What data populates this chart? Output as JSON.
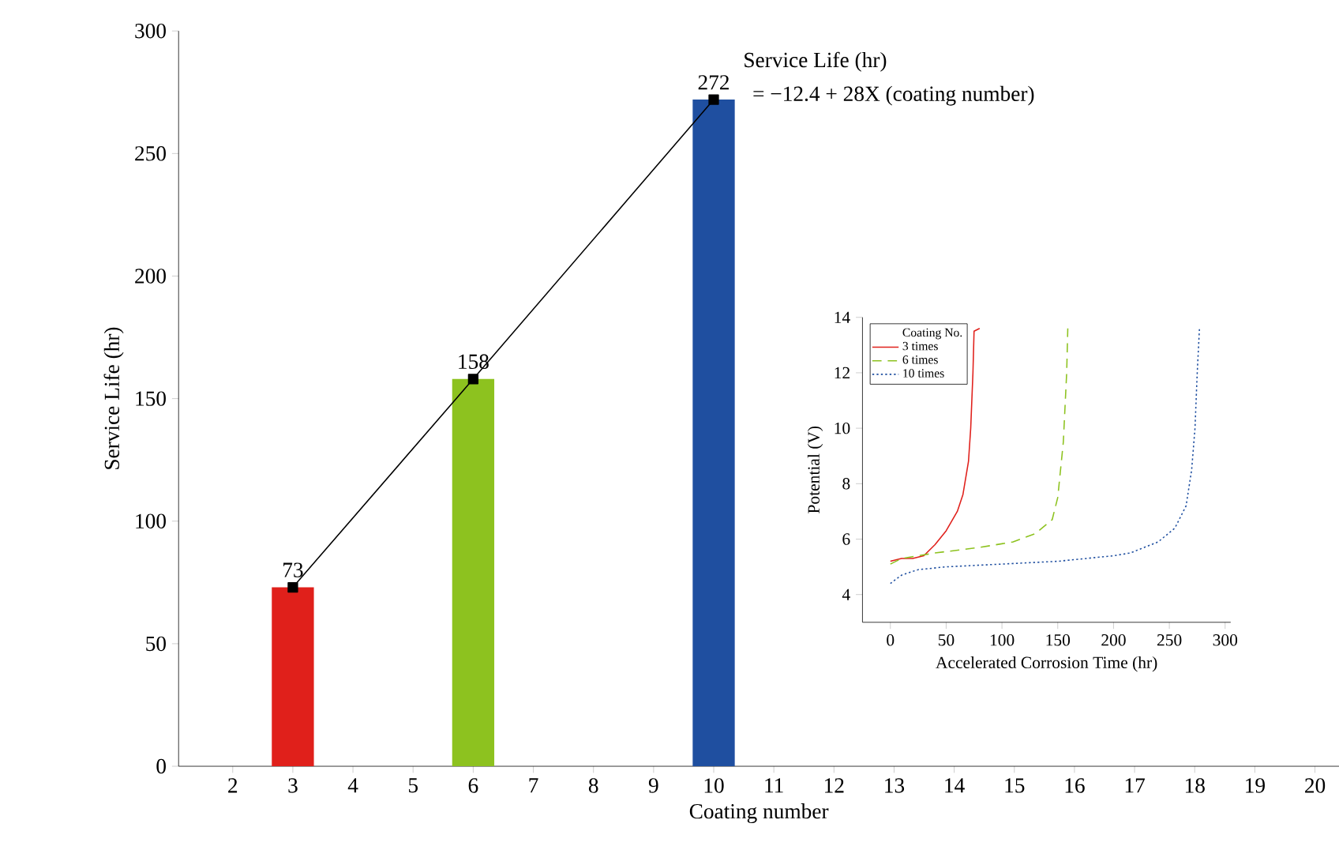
{
  "chart_data": [
    {
      "type": "bar",
      "x": [
        3,
        6,
        10
      ],
      "xlabel": "Coating number",
      "ylabel": "Service Life (hr)",
      "xlim": [
        1.1,
        20.4
      ],
      "xticks": [
        2,
        3,
        4,
        5,
        6,
        7,
        8,
        9,
        10,
        11,
        12,
        13,
        14,
        15,
        16,
        17,
        18,
        19,
        20
      ],
      "ylim": [
        0,
        300
      ],
      "yticks": [
        0,
        50,
        100,
        150,
        200,
        250,
        300
      ],
      "annotations": [
        "Service Life (hr)",
        "= −12.4 + 28X (coating number)"
      ],
      "series": [
        {
          "type": "bar",
          "colors": [
            "#e0201b",
            "#8dc21f",
            "#1f4fa0"
          ],
          "values": [
            73,
            158,
            272
          ],
          "value_labels": [
            "73",
            "158",
            "272"
          ]
        },
        {
          "type": "line",
          "color": "#000000",
          "marker": "square",
          "values": [
            73,
            158,
            272
          ]
        }
      ]
    },
    {
      "type": "line",
      "xlabel": "Accelerated Corrosion Time (hr)",
      "ylabel": "Potential (V)",
      "legend_title": "Coating No.",
      "legend": "top left",
      "xlim": [
        -25,
        305
      ],
      "xticks": [
        0,
        50,
        100,
        150,
        200,
        250,
        300
      ],
      "ylim": [
        3,
        14
      ],
      "yticks": [
        4,
        6,
        8,
        10,
        12,
        14
      ],
      "series": [
        {
          "name": "3 times",
          "color": "#e0201b",
          "line_style": "solid",
          "x": [
            0,
            10,
            20,
            30,
            40,
            50,
            60,
            65,
            70,
            72,
            74,
            75,
            80
          ],
          "values": [
            5.2,
            5.3,
            5.3,
            5.4,
            5.8,
            6.3,
            7.0,
            7.6,
            8.8,
            10,
            12,
            13.5,
            13.6
          ]
        },
        {
          "name": "6 times",
          "color": "#8dc21f",
          "line_style": "dashed",
          "x": [
            0,
            10,
            40,
            80,
            110,
            130,
            145,
            150,
            155,
            158,
            159
          ],
          "values": [
            5.1,
            5.3,
            5.5,
            5.7,
            5.9,
            6.2,
            6.7,
            7.5,
            9.5,
            12,
            13.6
          ]
        },
        {
          "name": "10 times",
          "color": "#1f4fa0",
          "line_style": "dotted",
          "x": [
            0,
            10,
            25,
            50,
            100,
            150,
            200,
            215,
            240,
            255,
            265,
            270,
            273,
            275,
            277
          ],
          "values": [
            4.4,
            4.7,
            4.9,
            5.0,
            5.1,
            5.2,
            5.4,
            5.5,
            5.9,
            6.4,
            7.2,
            8.5,
            10,
            12,
            13.6
          ]
        }
      ]
    }
  ]
}
